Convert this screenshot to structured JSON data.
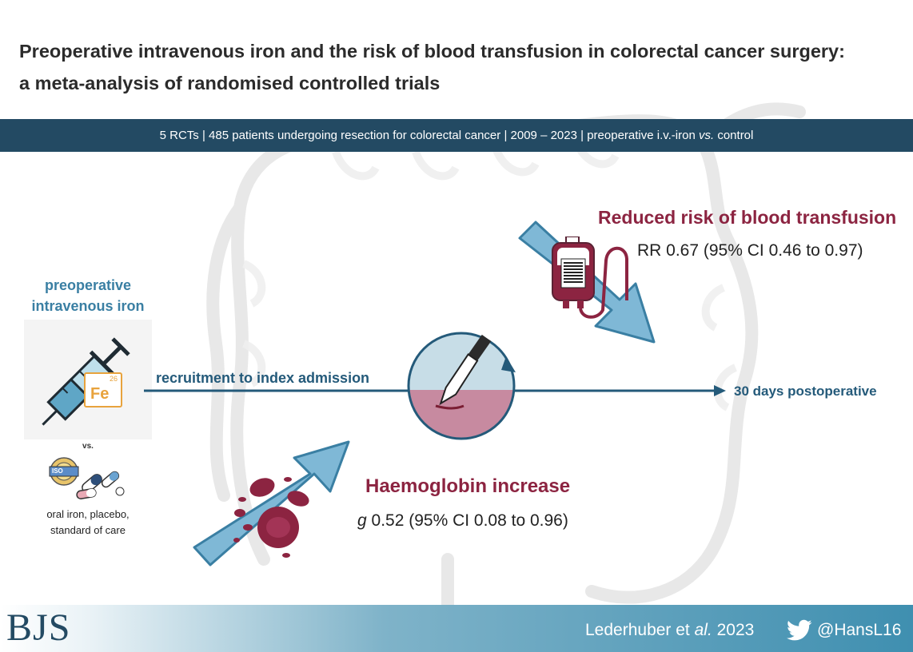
{
  "title": {
    "line1": "Preoperative intravenous iron and the risk of blood transfusion in colorectal cancer surgery:",
    "line2": "a meta-analysis of randomised controlled trials"
  },
  "banner": {
    "rcts": "5 RCTs",
    "patients": "485 patients undergoing resection for colorectal cancer",
    "years": "2009 – 2023",
    "comparison_prefix": "preoperative i.v.-iron ",
    "comparison_vs": "vs.",
    "comparison_suffix": " control"
  },
  "left": {
    "iv_label_line1": "preoperative",
    "iv_label_line2": "intravenous iron",
    "fe_number": "26",
    "fe_symbol": "Fe",
    "vs": "vs.",
    "iso_text": "ISO",
    "control_line1": "oral iron, placebo,",
    "control_line2": "standard of care"
  },
  "timeline": {
    "start_label": "recruitment to index admission",
    "end_label": "30 days postoperative"
  },
  "outcomes": {
    "transfusion": {
      "title": "Reduced risk of blood transfusion",
      "stat": "RR 0.67 (95% CI 0.46 to 0.97)"
    },
    "haemoglobin": {
      "title": "Haemoglobin increase",
      "stat_italic": "g",
      "stat": " 0.52 (95% CI 0.08 to 0.96)"
    }
  },
  "footer": {
    "journal": "BJS",
    "citation_author": "Lederhuber et ",
    "citation_al": "al.",
    "citation_year": " 2023",
    "twitter_handle": "@HansL16"
  },
  "colors": {
    "navy": "#234a63",
    "accent_blue": "#3a7fa3",
    "maroon": "#8c2441",
    "arrow_blue": "#7fb8d6",
    "fe_orange": "#e8a33d"
  },
  "icons": [
    "syringe-icon",
    "iron-fe-icon",
    "pills-icon",
    "iso-badge-icon",
    "blood-bag-icon",
    "scalpel-icon",
    "red-blood-cell-icon",
    "twitter-icon",
    "arrow-down-icon",
    "arrow-up-icon"
  ]
}
